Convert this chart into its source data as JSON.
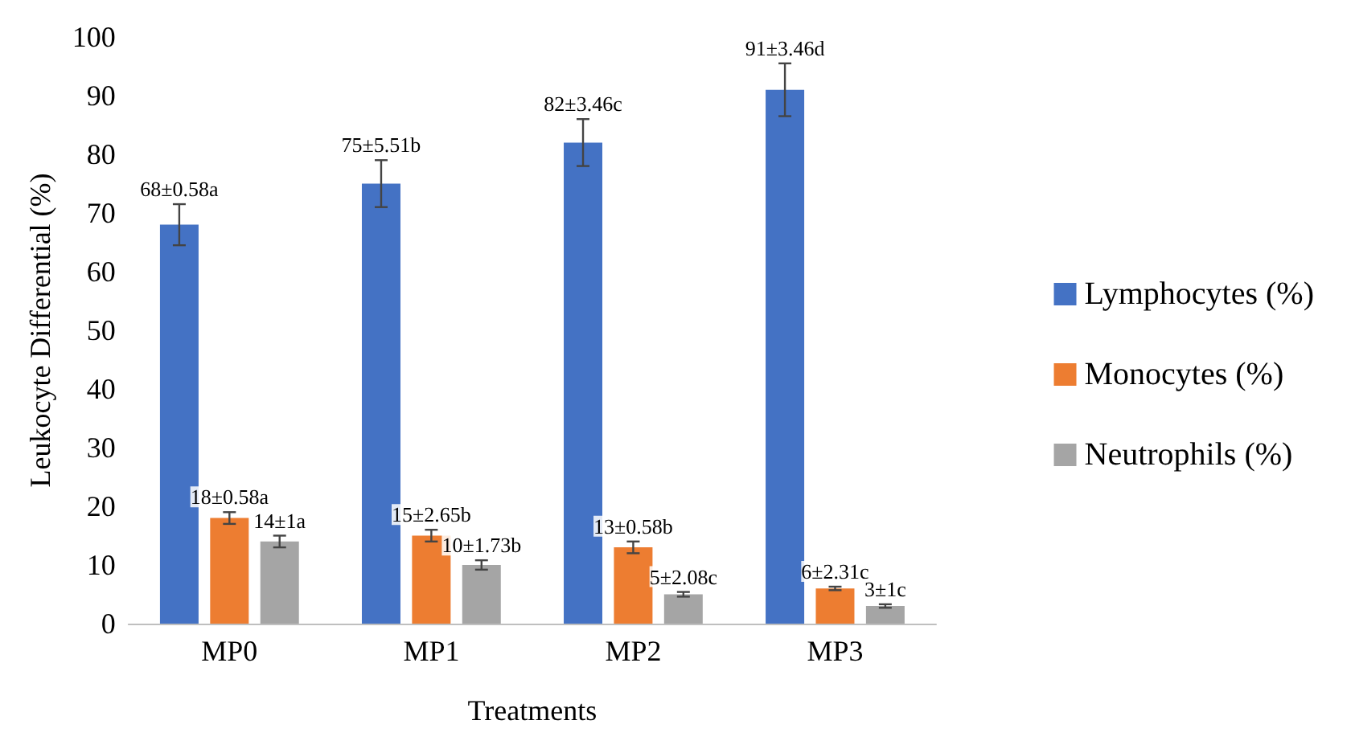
{
  "chart_data": {
    "type": "bar",
    "xlabel": "Treatments",
    "ylabel": "Leukocyte Differential (%)",
    "categories": [
      "MP0",
      "MP1",
      "MP2",
      "MP3"
    ],
    "series": [
      {
        "name": "Lymphocytes (%)",
        "color": "#4472c4",
        "values": [
          68,
          75,
          82,
          91
        ],
        "errors": [
          3.5,
          4,
          4,
          4.5
        ],
        "value_labels": [
          "68±0.58a",
          "75±5.51b",
          "82±3.46c",
          "91±3.46d"
        ]
      },
      {
        "name": "Monocytes (%)",
        "color": "#ed7d31",
        "values": [
          18,
          15,
          13,
          6
        ],
        "errors": [
          1,
          1,
          1,
          0.3
        ],
        "value_labels": [
          "18±0.58a",
          "15±2.65b",
          "13±0.58b",
          "6±2.31c"
        ]
      },
      {
        "name": "Neutrophils (%)",
        "color": "#a5a5a5",
        "values": [
          14,
          10,
          5,
          3
        ],
        "errors": [
          1,
          0.8,
          0.4,
          0.3
        ],
        "value_labels": [
          "14±1a",
          "10±1.73b",
          "5±2.08c",
          "3±1c"
        ]
      }
    ],
    "ylim": [
      0,
      100
    ],
    "yticks": [
      0,
      10,
      20,
      30,
      40,
      50,
      60,
      70,
      80,
      90,
      100
    ],
    "grid": false,
    "legend": "right"
  }
}
